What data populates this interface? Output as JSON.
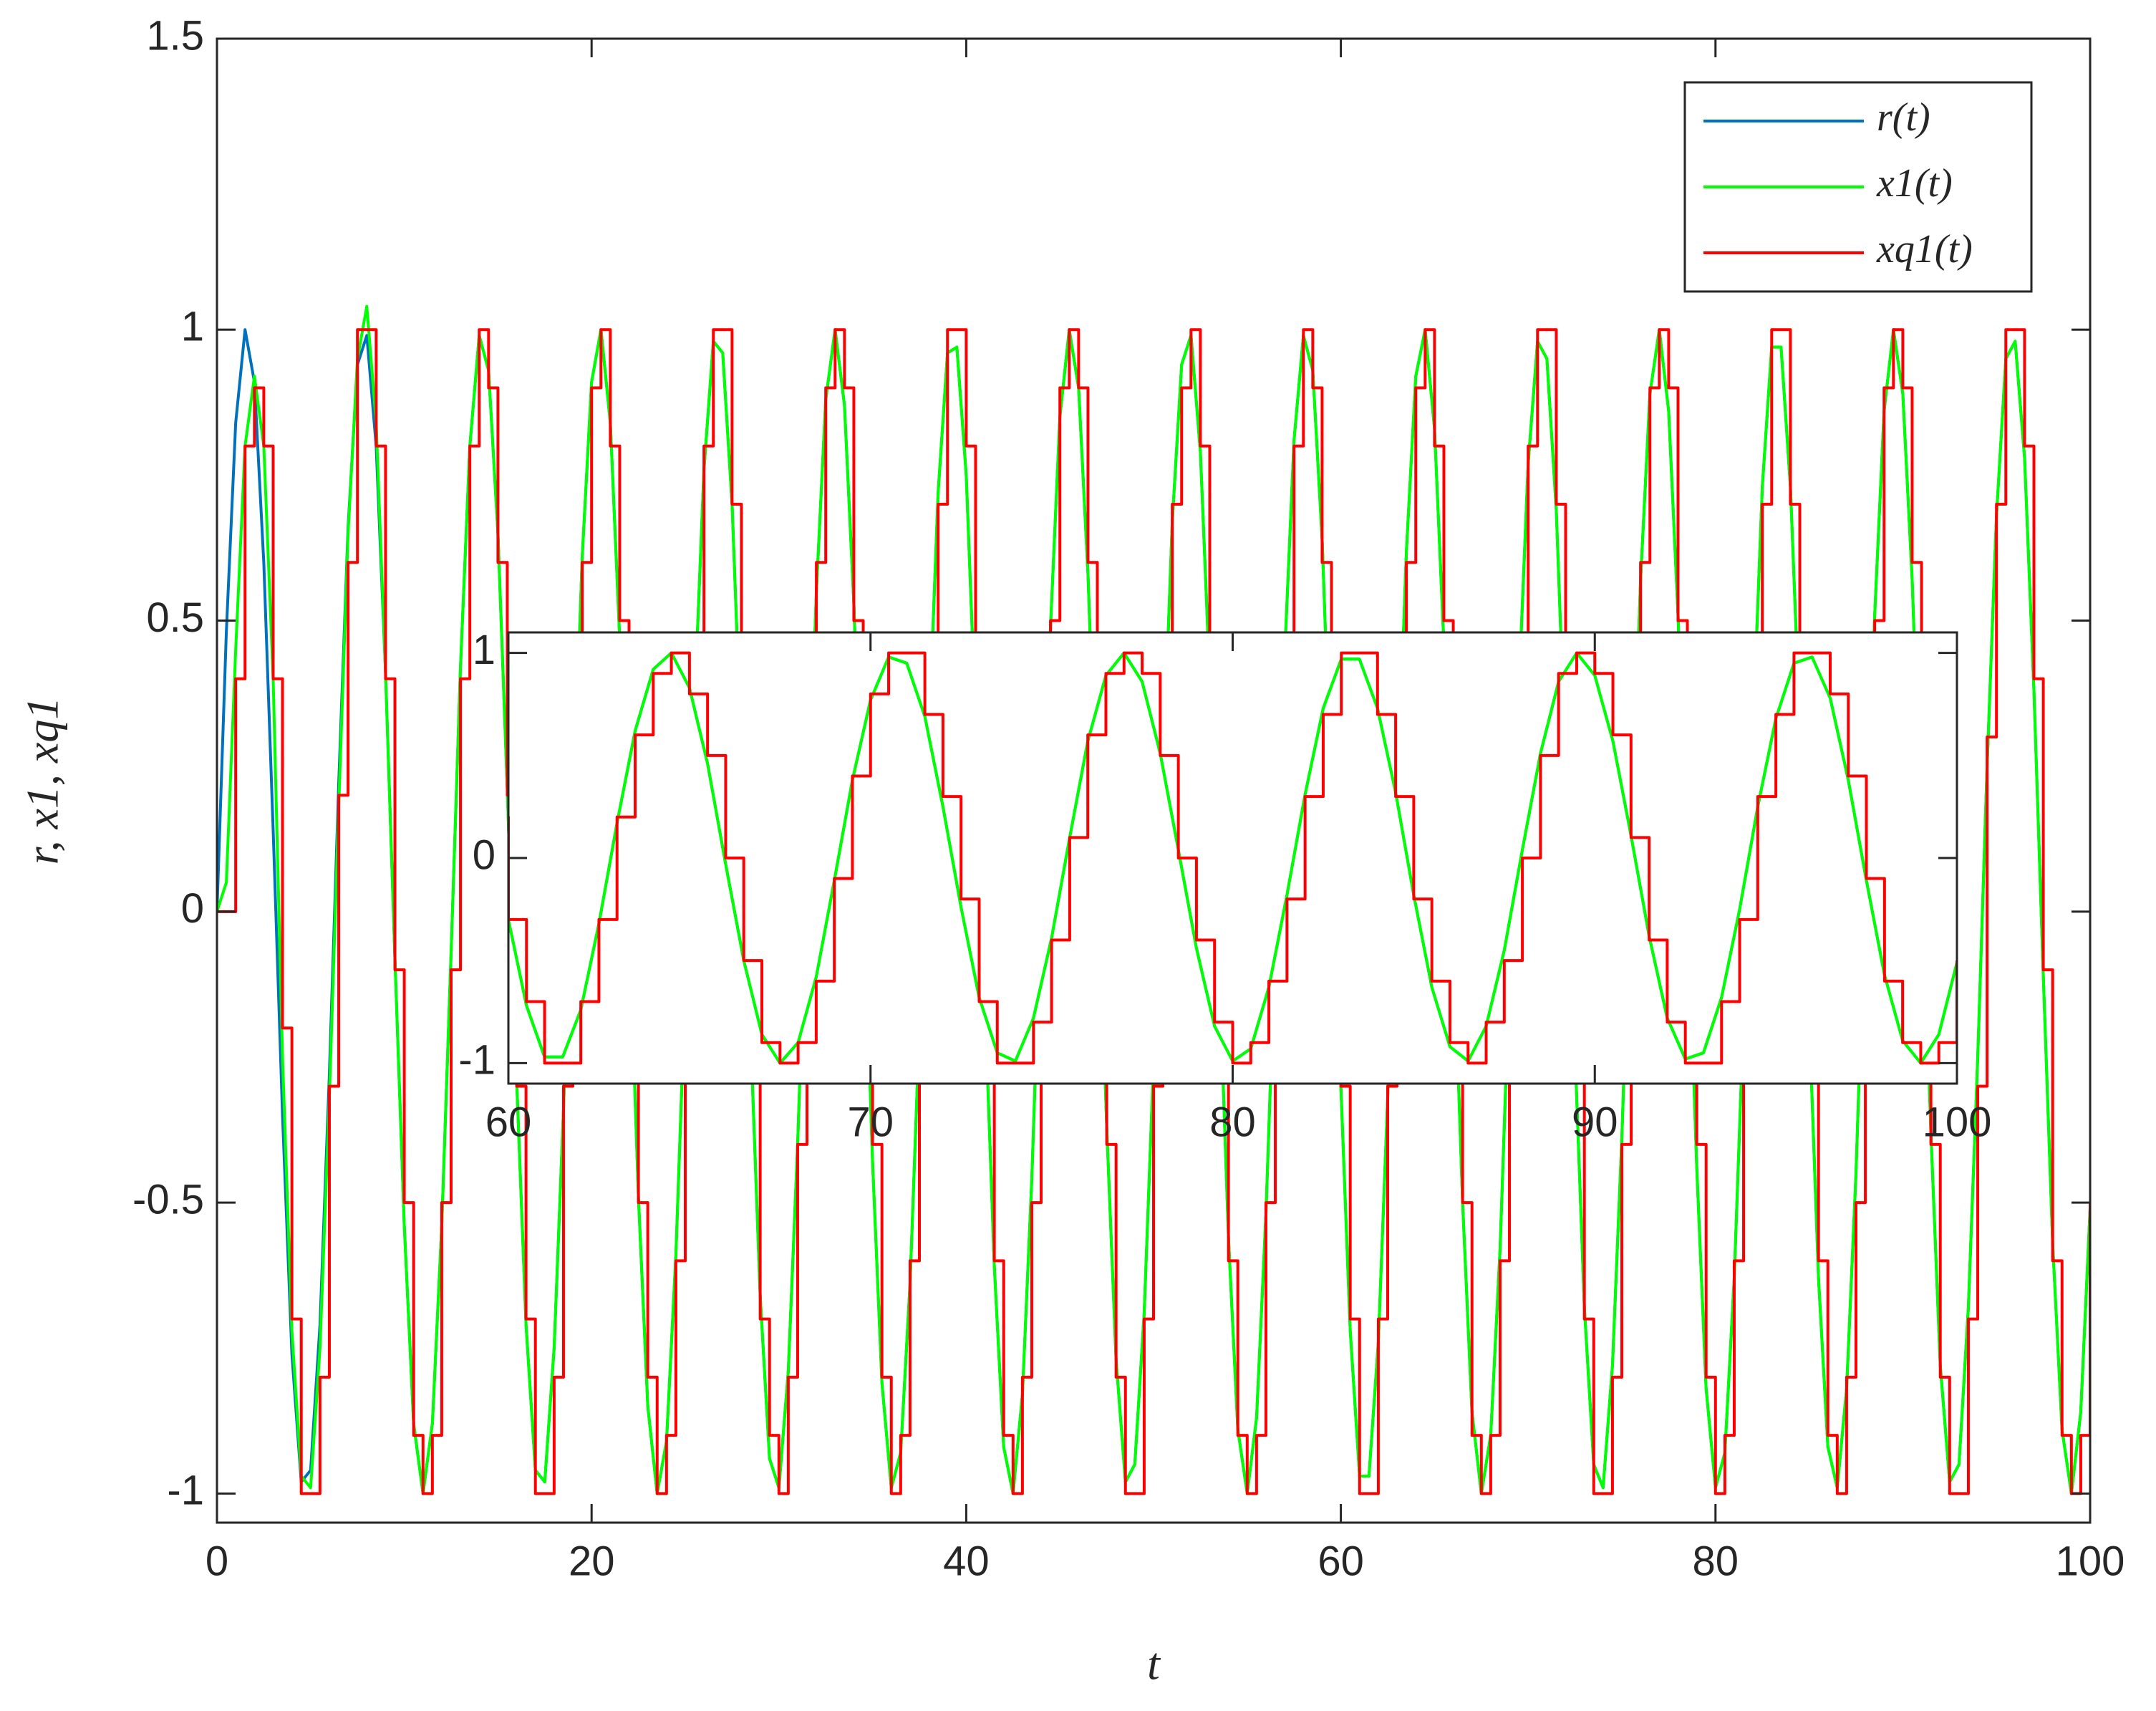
{
  "chart_data": [
    {
      "type": "line",
      "x_label": "t",
      "y_label": "r, x1, xq1",
      "xlim": [
        0,
        100
      ],
      "ylim": [
        -1.05,
        1.5
      ],
      "xticks": [
        0,
        20,
        40,
        60,
        80,
        100
      ],
      "yticks": [
        -1,
        -0.5,
        0,
        0.5,
        1,
        1.5
      ],
      "legend": "northeast",
      "x": [
        0,
        0.5,
        1,
        1.5,
        2,
        2.5,
        3,
        3.5,
        4,
        4.5,
        5,
        5.5,
        6,
        6.5,
        7,
        7.5,
        8,
        8.5,
        9,
        9.5,
        10,
        10.5,
        11,
        11.5,
        12,
        12.5,
        13,
        13.5,
        14,
        14.5,
        15,
        15.5,
        16,
        16.5,
        17,
        17.5,
        18,
        18.5,
        19,
        19.5,
        20,
        20.5,
        21,
        21.5,
        22,
        22.5,
        23,
        23.5,
        24,
        24.5,
        25,
        25.5,
        26,
        26.5,
        27,
        27.5,
        28,
        28.5,
        29,
        29.5,
        30,
        30.5,
        31,
        31.5,
        32,
        32.5,
        33,
        33.5,
        34,
        34.5,
        35,
        35.5,
        36,
        36.5,
        37,
        37.5,
        38,
        38.5,
        39,
        39.5,
        40,
        40.5,
        41,
        41.5,
        42,
        42.5,
        43,
        43.5,
        44,
        44.5,
        45,
        45.5,
        46,
        46.5,
        47,
        47.5,
        48,
        48.5,
        49,
        49.5,
        50,
        50.5,
        51,
        51.5,
        52,
        52.5,
        53,
        53.5,
        54,
        54.5,
        55,
        55.5,
        56,
        56.5,
        57,
        57.5,
        58,
        58.5,
        59,
        59.5,
        60,
        60.5,
        61,
        61.5,
        62,
        62.5,
        63,
        63.5,
        64,
        64.5,
        65,
        65.5,
        66,
        66.5,
        67,
        67.5,
        68,
        68.5,
        69,
        69.5,
        70,
        70.5,
        71,
        71.5,
        72,
        72.5,
        73,
        73.5,
        74,
        74.5,
        75,
        75.5,
        76,
        76.5,
        77,
        77.5,
        78,
        78.5,
        79,
        79.5,
        80,
        80.5,
        81,
        81.5,
        82,
        82.5,
        83,
        83.5,
        84,
        84.5,
        85,
        85.5,
        86,
        86.5,
        87,
        87.5,
        88,
        88.5,
        89,
        89.5,
        90,
        90.5,
        91,
        91.5,
        92,
        92.5,
        93,
        93.5,
        94,
        94.5,
        95,
        95.5,
        96,
        96.5,
        97,
        97.5,
        98,
        98.5,
        99,
        99.5,
        100
      ],
      "series": [
        {
          "name": "r(t)",
          "color": "#0072bd",
          "values": [
            0,
            0.48,
            0.84,
            1.0,
            0.91,
            0.6,
            0.14,
            -0.35,
            -0.76,
            -0.98,
            -0.96,
            -0.71,
            -0.28,
            0.22,
            0.66,
            0.94,
            0.99,
            0.8,
            0.41,
            -0.08,
            -0.54,
            -0.88,
            -1.0,
            -0.88,
            -0.54,
            -0.07,
            0.42,
            0.8,
            0.99,
            0.93,
            0.65,
            0.21,
            -0.29,
            -0.71,
            -0.96,
            -0.98,
            -0.75,
            -0.34,
            0.15,
            0.61,
            0.91,
            1.0,
            0.84,
            0.47,
            -0.01,
            -0.49,
            -0.85,
            -1.0,
            -0.91,
            -0.59,
            -0.13,
            0.36,
            0.76,
            0.98,
            0.96,
            0.7,
            0.27,
            -0.22,
            -0.66,
            -0.94,
            -0.99,
            -0.79,
            -0.4,
            0.08,
            0.55,
            0.88,
            1.0,
            0.87,
            0.53,
            0.06,
            -0.43,
            -0.81,
            -0.99,
            -0.93,
            -0.64,
            -0.2,
            0.3,
            0.72,
            0.96,
            0.97,
            0.75,
            0.33,
            -0.16,
            -0.61,
            -0.92,
            -1.0,
            -0.83,
            -0.46,
            0.02,
            0.49,
            0.85,
            1.0,
            0.9,
            0.58,
            0.12,
            -0.37,
            -0.77,
            -0.98,
            -0.95,
            -0.69,
            -0.26,
            0.23,
            0.67,
            0.94,
            0.99,
            0.79,
            0.4,
            -0.09,
            -0.56,
            -0.89,
            -1.0,
            -0.87,
            -0.52,
            -0.05,
            0.44,
            0.81,
            0.99,
            0.93,
            0.64,
            0.19,
            -0.3,
            -0.72,
            -0.97,
            -0.97,
            -0.74,
            -0.32,
            0.17,
            0.62,
            0.92,
            1.0,
            0.83,
            0.46,
            -0.03,
            -0.5,
            -0.86,
            -1.0,
            -0.9,
            -0.58,
            -0.11,
            0.38,
            0.77,
            0.98,
            0.95,
            0.69,
            0.25,
            -0.24,
            -0.68,
            -0.95,
            -0.99,
            -0.78,
            -0.39,
            0.1,
            0.57,
            0.89,
            1.0,
            0.86,
            0.51,
            0.04,
            -0.44,
            -0.82,
            -0.99,
            -0.93,
            -0.63,
            -0.18,
            0.31,
            0.73,
            0.97,
            0.97,
            0.73,
            0.32,
            -0.18,
            -0.63,
            -0.92,
            -0.99,
            -0.82,
            -0.45,
            0.04,
            0.51,
            0.86,
            1.0,
            0.89,
            0.57,
            0.11,
            -0.38,
            -0.78,
            -0.98,
            -0.95,
            -0.68,
            -0.25,
            0.25,
            0.68,
            0.95,
            0.98,
            0.78,
            0.38,
            -0.11,
            -0.57,
            -0.89,
            -1.0,
            -0.86,
            -0.51
          ]
        },
        {
          "name": "x1(t)",
          "color": "#00ff00",
          "values": [
            0,
            0.05,
            0.45,
            0.8,
            0.92,
            0.8,
            0.4,
            -0.25,
            -0.72,
            -0.97,
            -0.99,
            -0.75,
            -0.32,
            0.18,
            0.65,
            0.95,
            1.04,
            0.84,
            0.41,
            -0.08,
            -0.54,
            -0.88,
            -1.0,
            -0.88,
            -0.54,
            -0.07,
            0.42,
            0.8,
            0.99,
            0.93,
            0.65,
            0.21,
            -0.29,
            -0.71,
            -0.96,
            -0.98,
            -0.75,
            -0.34,
            0.15,
            0.61,
            0.91,
            1.0,
            0.84,
            0.47,
            -0.01,
            -0.49,
            -0.85,
            -1.0,
            -0.91,
            -0.59,
            -0.13,
            0.36,
            0.76,
            0.98,
            0.96,
            0.7,
            0.27,
            -0.22,
            -0.66,
            -0.94,
            -0.99,
            -0.79,
            -0.4,
            0.08,
            0.55,
            0.88,
            1.0,
            0.87,
            0.53,
            0.06,
            -0.43,
            -0.81,
            -0.99,
            -0.93,
            -0.64,
            -0.2,
            0.3,
            0.72,
            0.96,
            0.97,
            0.75,
            0.33,
            -0.16,
            -0.61,
            -0.92,
            -1.0,
            -0.83,
            -0.46,
            0.02,
            0.49,
            0.85,
            1.0,
            0.9,
            0.58,
            0.12,
            -0.37,
            -0.77,
            -0.98,
            -0.95,
            -0.69,
            -0.26,
            0.23,
            0.67,
            0.94,
            0.99,
            0.79,
            0.4,
            -0.09,
            -0.56,
            -0.89,
            -1.0,
            -0.87,
            -0.52,
            -0.05,
            0.44,
            0.81,
            0.99,
            0.93,
            0.64,
            0.19,
            -0.3,
            -0.72,
            -0.97,
            -0.97,
            -0.74,
            -0.32,
            0.17,
            0.62,
            0.92,
            1.0,
            0.83,
            0.46,
            -0.03,
            -0.5,
            -0.86,
            -1.0,
            -0.9,
            -0.58,
            -0.11,
            0.38,
            0.77,
            0.98,
            0.95,
            0.69,
            0.25,
            -0.24,
            -0.68,
            -0.95,
            -0.99,
            -0.78,
            -0.39,
            0.1,
            0.57,
            0.89,
            1.0,
            0.86,
            0.51,
            0.04,
            -0.44,
            -0.82,
            -0.99,
            -0.93,
            -0.63,
            -0.18,
            0.31,
            0.73,
            0.97,
            0.97,
            0.73,
            0.32,
            -0.18,
            -0.63,
            -0.92,
            -0.99,
            -0.82,
            -0.45,
            0.04,
            0.51,
            0.86,
            1.0,
            0.89,
            0.57,
            0.11,
            -0.38,
            -0.78,
            -0.98,
            -0.95,
            -0.68,
            -0.25,
            0.25,
            0.68,
            0.95,
            0.98,
            0.78,
            0.38,
            -0.11,
            -0.57,
            -0.89,
            -1.0,
            -0.86,
            -0.51
          ]
        },
        {
          "name": "xq1(t)",
          "color": "#ff0000",
          "step": true,
          "values": [
            0,
            0,
            0.4,
            0.8,
            0.9,
            0.8,
            0.4,
            -0.2,
            -0.7,
            -1.0,
            -1.0,
            -0.8,
            -0.3,
            0.2,
            0.6,
            1.0,
            1.0,
            0.8,
            0.4,
            -0.1,
            -0.5,
            -0.9,
            -1.0,
            -0.9,
            -0.5,
            -0.1,
            0.4,
            0.8,
            1.0,
            0.9,
            0.6,
            0.2,
            -0.3,
            -0.7,
            -1.0,
            -1.0,
            -0.8,
            -0.3,
            0.2,
            0.6,
            0.9,
            1.0,
            0.8,
            0.5,
            0.0,
            -0.5,
            -0.8,
            -1.0,
            -0.9,
            -0.6,
            -0.1,
            0.4,
            0.8,
            1.0,
            1.0,
            0.7,
            0.3,
            -0.2,
            -0.7,
            -0.9,
            -1.0,
            -0.8,
            -0.4,
            0.1,
            0.6,
            0.9,
            1.0,
            0.9,
            0.5,
            0.1,
            -0.4,
            -0.8,
            -1.0,
            -0.9,
            -0.6,
            -0.2,
            0.3,
            0.7,
            1.0,
            1.0,
            0.8,
            0.3,
            -0.2,
            -0.6,
            -0.9,
            -1.0,
            -0.8,
            -0.5,
            0.0,
            0.5,
            0.9,
            1.0,
            0.9,
            0.6,
            0.1,
            -0.4,
            -0.8,
            -1.0,
            -1.0,
            -0.7,
            -0.3,
            0.2,
            0.7,
            0.9,
            1.0,
            0.8,
            0.4,
            -0.1,
            -0.6,
            -0.9,
            -1.0,
            -0.9,
            -0.5,
            -0.1,
            0.4,
            0.8,
            1.0,
            0.9,
            0.6,
            0.2,
            -0.3,
            -0.7,
            -1.0,
            -1.0,
            -0.7,
            -0.3,
            0.2,
            0.6,
            0.9,
            1.0,
            0.8,
            0.5,
            0.0,
            -0.5,
            -0.9,
            -1.0,
            -0.9,
            -0.6,
            -0.1,
            0.4,
            0.8,
            1.0,
            1.0,
            0.7,
            0.3,
            -0.2,
            -0.7,
            -1.0,
            -1.0,
            -0.8,
            -0.4,
            0.1,
            0.6,
            0.9,
            1.0,
            0.9,
            0.5,
            0.0,
            -0.4,
            -0.8,
            -1.0,
            -0.9,
            -0.6,
            -0.2,
            0.3,
            0.7,
            1.0,
            1.0,
            0.7,
            0.3,
            -0.2,
            -0.6,
            -0.9,
            -1.0,
            -0.8,
            -0.5,
            0.0,
            0.5,
            0.9,
            1.0,
            0.9,
            0.6,
            0.1,
            -0.4,
            -0.8,
            -1.0,
            -1.0,
            -0.7,
            -0.3,
            0.3,
            0.7,
            1.0,
            1.0,
            0.8,
            0.4,
            -0.1,
            -0.6,
            -0.9,
            -1.0,
            -0.9,
            -0.5
          ]
        }
      ]
    },
    {
      "type": "line",
      "xlim": [
        60,
        100
      ],
      "ylim": [
        -1.1,
        1.1
      ],
      "xticks": [
        60,
        70,
        80,
        90,
        100
      ],
      "yticks": [
        -1,
        0,
        1
      ]
    }
  ]
}
